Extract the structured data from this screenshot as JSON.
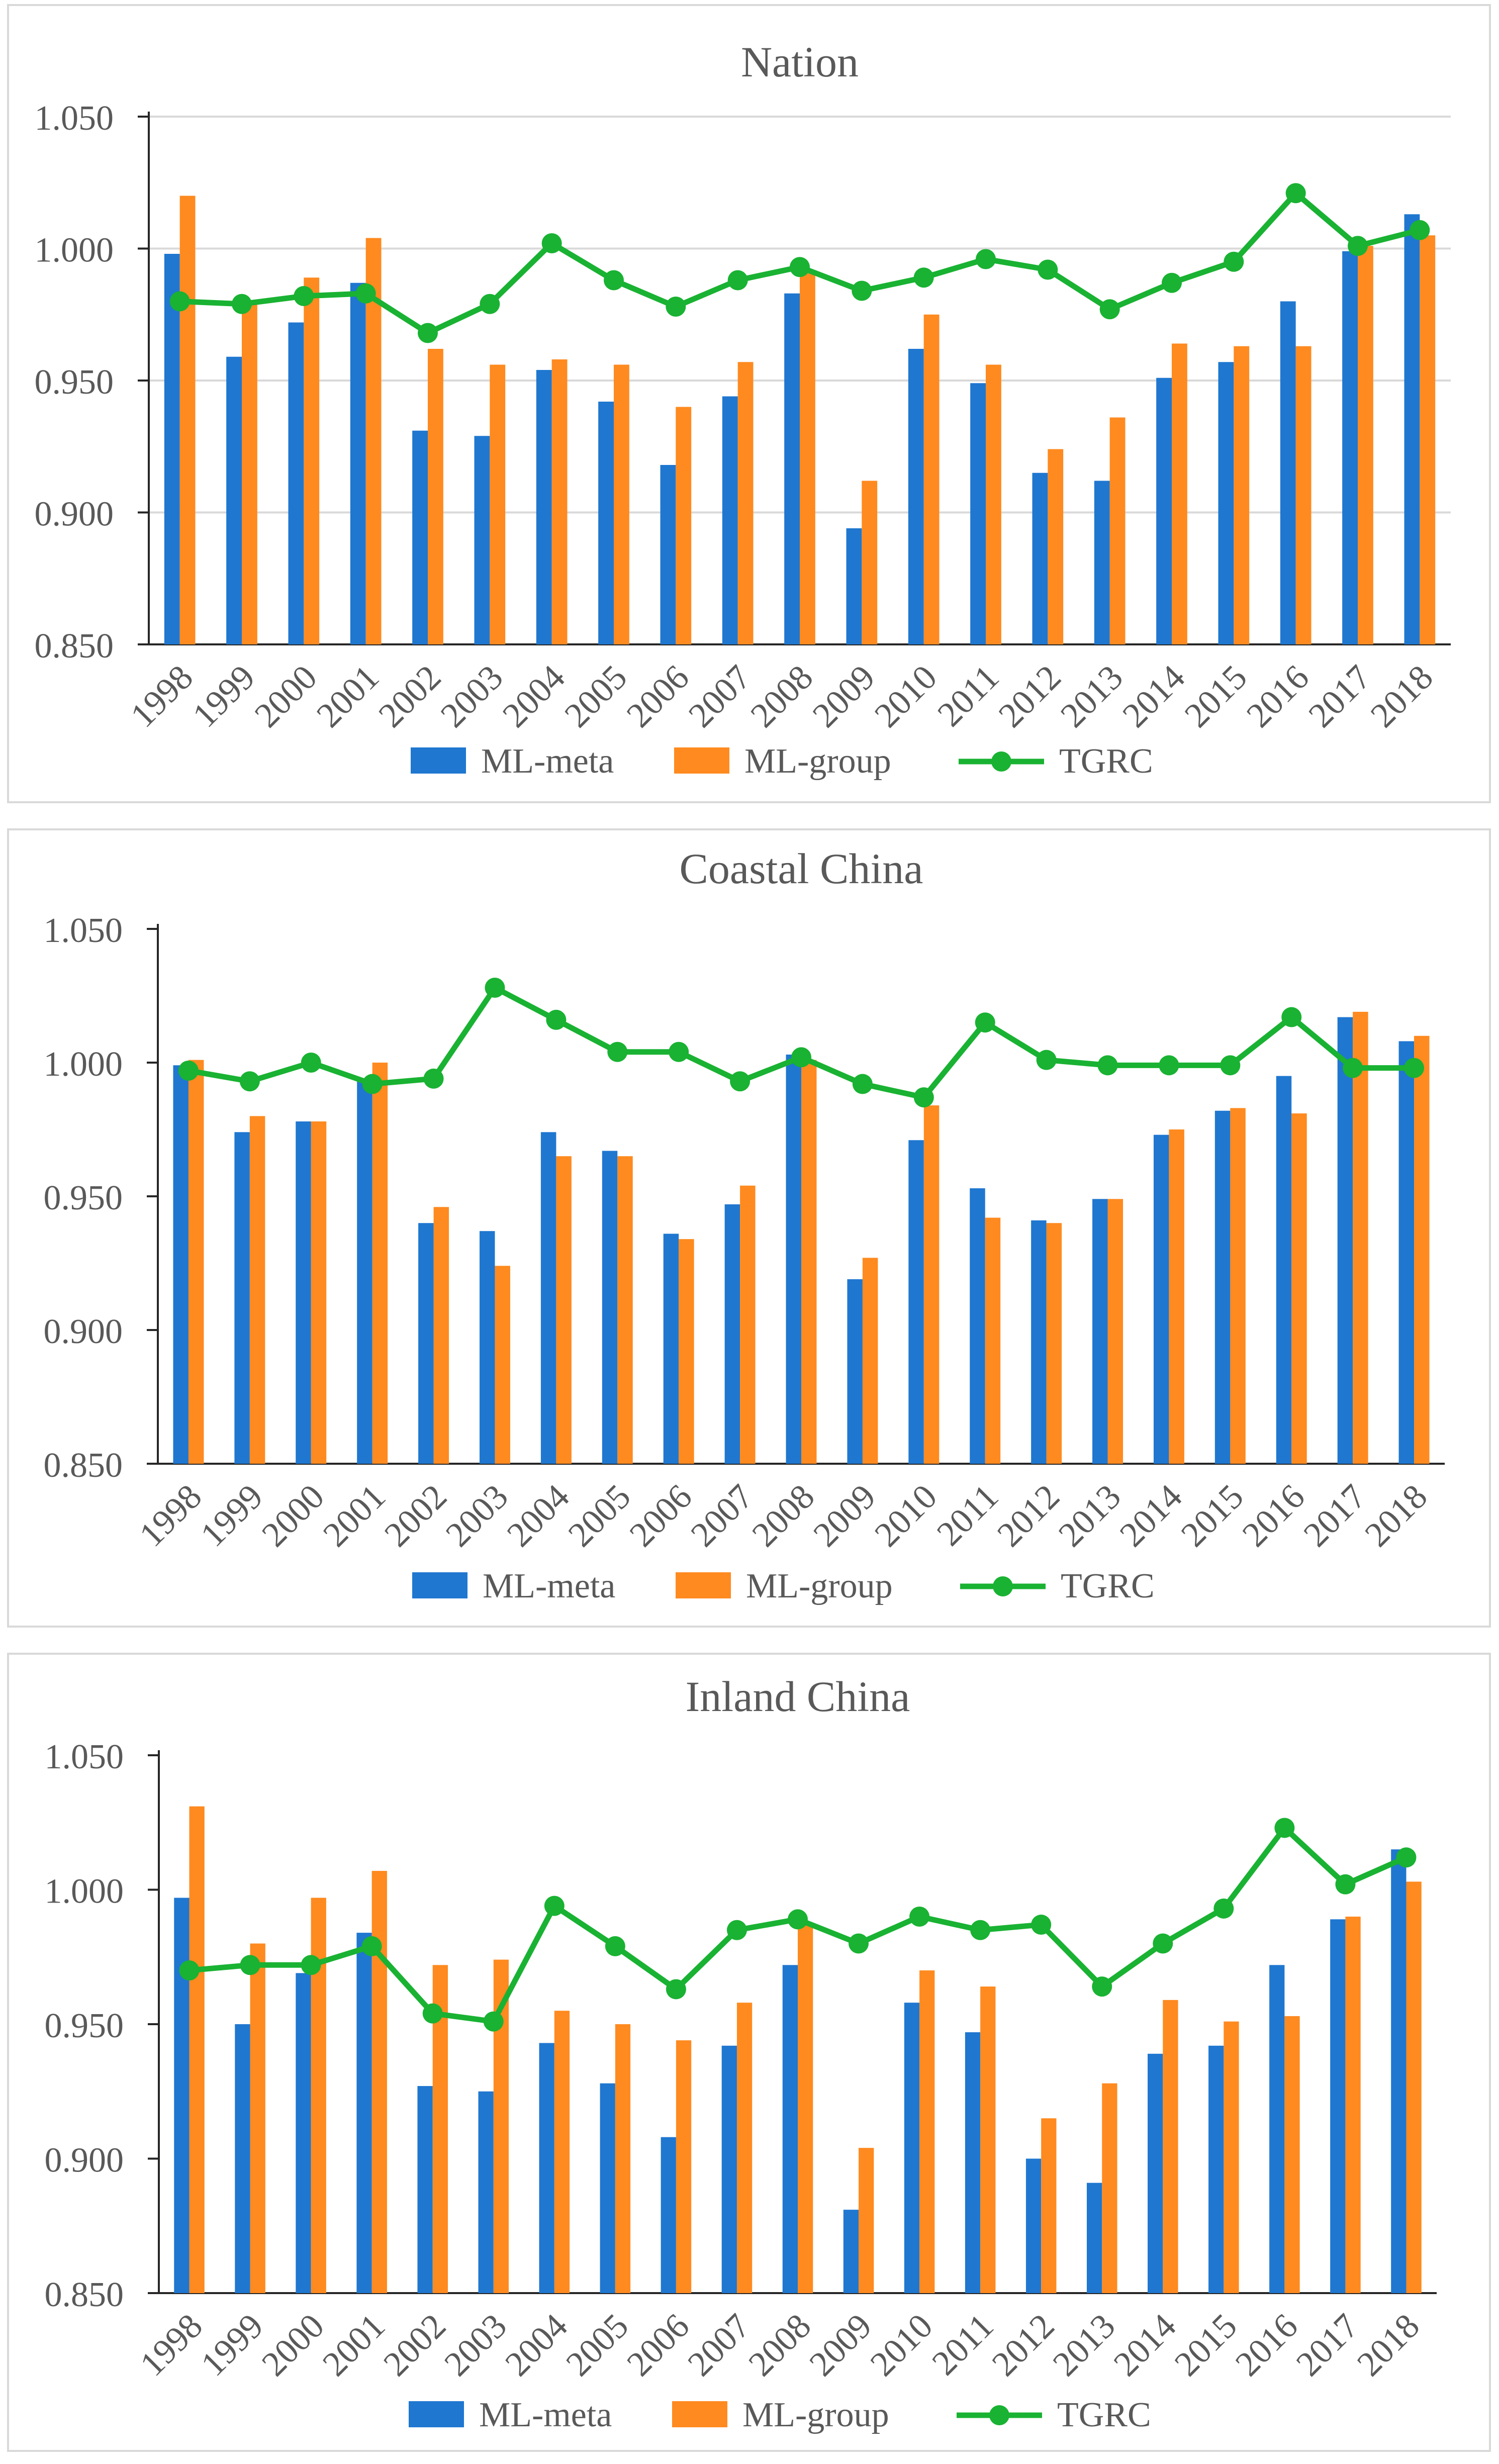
{
  "chart_data": [
    {
      "type": "bar",
      "title": "Nation",
      "xlabel": "",
      "ylabel": "",
      "categories": [
        "1998",
        "1999",
        "2000",
        "2001",
        "2002",
        "2003",
        "2004",
        "2005",
        "2006",
        "2007",
        "2008",
        "2009",
        "2010",
        "2011",
        "2012",
        "2013",
        "2014",
        "2015",
        "2016",
        "2017",
        "2018"
      ],
      "ylim": [
        0.85,
        1.05
      ],
      "yticks": [
        "0.850",
        "0.900",
        "0.950",
        "1.000",
        "1.050"
      ],
      "grid": true,
      "legend_position": "bottom",
      "series": [
        {
          "name": "ML-meta",
          "kind": "bar",
          "color": "#1F77D0",
          "values": [
            0.998,
            0.959,
            0.972,
            0.987,
            0.931,
            0.929,
            0.954,
            0.942,
            0.918,
            0.944,
            0.983,
            0.894,
            0.962,
            0.949,
            0.915,
            0.912,
            0.951,
            0.957,
            0.98,
            0.999,
            1.013
          ]
        },
        {
          "name": "ML-group",
          "kind": "bar",
          "color": "#FF8A1F",
          "values": [
            1.02,
            0.98,
            0.989,
            1.004,
            0.962,
            0.956,
            0.958,
            0.956,
            0.94,
            0.957,
            0.991,
            0.912,
            0.975,
            0.956,
            0.924,
            0.936,
            0.964,
            0.963,
            0.963,
            1.001,
            1.005
          ]
        },
        {
          "name": "TGRC",
          "kind": "line",
          "color": "#19B232",
          "values": [
            0.98,
            0.979,
            0.982,
            0.983,
            0.968,
            0.979,
            1.002,
            0.988,
            0.978,
            0.988,
            0.993,
            0.984,
            0.989,
            0.996,
            0.992,
            0.977,
            0.987,
            0.995,
            1.021,
            1.001,
            1.007
          ]
        }
      ]
    },
    {
      "type": "bar",
      "title": "Coastal China",
      "xlabel": "",
      "ylabel": "",
      "categories": [
        "1998",
        "1999",
        "2000",
        "2001",
        "2002",
        "2003",
        "2004",
        "2005",
        "2006",
        "2007",
        "2008",
        "2009",
        "2010",
        "2011",
        "2012",
        "2013",
        "2014",
        "2015",
        "2016",
        "2017",
        "2018"
      ],
      "ylim": [
        0.85,
        1.05
      ],
      "yticks": [
        "0.850",
        "0.900",
        "0.950",
        "1.000",
        "1.050"
      ],
      "grid": false,
      "legend_position": "bottom",
      "series": [
        {
          "name": "ML-meta",
          "kind": "bar",
          "color": "#1F77D0",
          "values": [
            0.999,
            0.974,
            0.978,
            0.993,
            0.94,
            0.937,
            0.974,
            0.967,
            0.936,
            0.947,
            1.003,
            0.919,
            0.971,
            0.953,
            0.941,
            0.949,
            0.973,
            0.982,
            0.995,
            1.017,
            1.008
          ]
        },
        {
          "name": "ML-group",
          "kind": "bar",
          "color": "#FF8A1F",
          "values": [
            1.001,
            0.98,
            0.978,
            1.0,
            0.946,
            0.924,
            0.965,
            0.965,
            0.934,
            0.954,
            1.001,
            0.927,
            0.984,
            0.942,
            0.94,
            0.949,
            0.975,
            0.983,
            0.981,
            1.019,
            1.01
          ]
        },
        {
          "name": "TGRC",
          "kind": "line",
          "color": "#19B232",
          "values": [
            0.997,
            0.993,
            1.0,
            0.992,
            0.994,
            1.028,
            1.016,
            1.004,
            1.004,
            0.993,
            1.002,
            0.992,
            0.987,
            1.015,
            1.001,
            0.999,
            0.999,
            0.999,
            1.017,
            0.998,
            0.998
          ]
        }
      ]
    },
    {
      "type": "bar",
      "title": "Inland China",
      "xlabel": "",
      "ylabel": "",
      "categories": [
        "1998",
        "1999",
        "2000",
        "2001",
        "2002",
        "2003",
        "2004",
        "2005",
        "2006",
        "2007",
        "2008",
        "2009",
        "2010",
        "2011",
        "2012",
        "2013",
        "2014",
        "2015",
        "2016",
        "2017",
        "2018"
      ],
      "ylim": [
        0.85,
        1.05
      ],
      "yticks": [
        "0.850",
        "0.900",
        "0.950",
        "1.000",
        "1.050"
      ],
      "grid": false,
      "legend_position": "bottom",
      "series": [
        {
          "name": "ML-meta",
          "kind": "bar",
          "color": "#1F77D0",
          "values": [
            0.997,
            0.95,
            0.969,
            0.984,
            0.927,
            0.925,
            0.943,
            0.928,
            0.908,
            0.942,
            0.972,
            0.881,
            0.958,
            0.947,
            0.9,
            0.891,
            0.939,
            0.942,
            0.972,
            0.989,
            1.015
          ]
        },
        {
          "name": "ML-group",
          "kind": "bar",
          "color": "#FF8A1F",
          "values": [
            1.031,
            0.98,
            0.997,
            1.007,
            0.972,
            0.974,
            0.955,
            0.95,
            0.944,
            0.958,
            0.987,
            0.904,
            0.97,
            0.964,
            0.915,
            0.928,
            0.959,
            0.951,
            0.953,
            0.99,
            1.003
          ]
        },
        {
          "name": "TGRC",
          "kind": "line",
          "color": "#19B232",
          "values": [
            0.97,
            0.972,
            0.972,
            0.979,
            0.954,
            0.951,
            0.994,
            0.979,
            0.963,
            0.985,
            0.989,
            0.98,
            0.99,
            0.985,
            0.987,
            0.964,
            0.98,
            0.993,
            1.023,
            1.002,
            1.012
          ]
        }
      ]
    }
  ]
}
